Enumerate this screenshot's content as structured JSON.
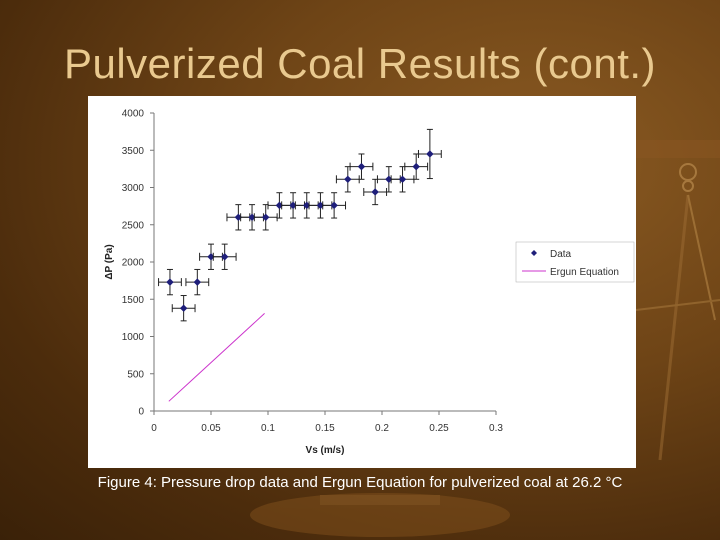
{
  "slide": {
    "title": "Pulverized Coal Results (cont.)",
    "caption": "Figure 4: Pressure drop data and Ergun Equation for pulverized coal at 26.2 °C"
  },
  "colors": {
    "background": "#6e4416",
    "title": "#e9c98f",
    "data_marker": "#1f1f7a",
    "ergun_line": "#cc33cc"
  },
  "chart_data": {
    "type": "scatter",
    "xlabel": "Vs (m/s)",
    "ylabel": "ΔP (Pa)",
    "xlim": [
      0,
      0.3
    ],
    "ylim": [
      0,
      4000
    ],
    "xticks": [
      0,
      0.05,
      0.1,
      0.15,
      0.2,
      0.25,
      0.3
    ],
    "xtick_labels": [
      "0",
      "0.05",
      "0.1",
      "0.15",
      "0.2",
      "0.25",
      "0.3"
    ],
    "yticks": [
      0,
      500,
      1000,
      1500,
      2000,
      2500,
      3000,
      3500,
      4000
    ],
    "ytick_labels": [
      "0",
      "500",
      "1000",
      "1500",
      "2000",
      "2500",
      "3000",
      "3500",
      "4000"
    ],
    "grid": false,
    "legend_position": "right",
    "series": [
      {
        "name": "Data",
        "kind": "points_with_error_bars",
        "x": [
          0.014,
          0.026,
          0.038,
          0.05,
          0.062,
          0.074,
          0.086,
          0.098,
          0.11,
          0.122,
          0.134,
          0.146,
          0.158,
          0.17,
          0.182,
          0.194,
          0.206,
          0.218,
          0.23,
          0.242
        ],
        "y": [
          1730,
          1380,
          1730,
          2070,
          2070,
          2600,
          2600,
          2600,
          2760,
          2760,
          2760,
          2760,
          2760,
          3110,
          3280,
          2940,
          3110,
          3110,
          3280,
          3450
        ],
        "xerr": [
          0.01,
          0.01,
          0.01,
          0.01,
          0.01,
          0.01,
          0.01,
          0.01,
          0.01,
          0.01,
          0.01,
          0.01,
          0.01,
          0.01,
          0.01,
          0.01,
          0.01,
          0.01,
          0.01,
          0.01
        ],
        "yerr": [
          170,
          170,
          170,
          170,
          170,
          170,
          170,
          170,
          170,
          170,
          170,
          170,
          170,
          170,
          170,
          170,
          170,
          170,
          170,
          330
        ]
      },
      {
        "name": "Ergun Equation",
        "kind": "line",
        "x": [
          0.013,
          0.097
        ],
        "y": [
          130,
          1310
        ]
      }
    ]
  }
}
